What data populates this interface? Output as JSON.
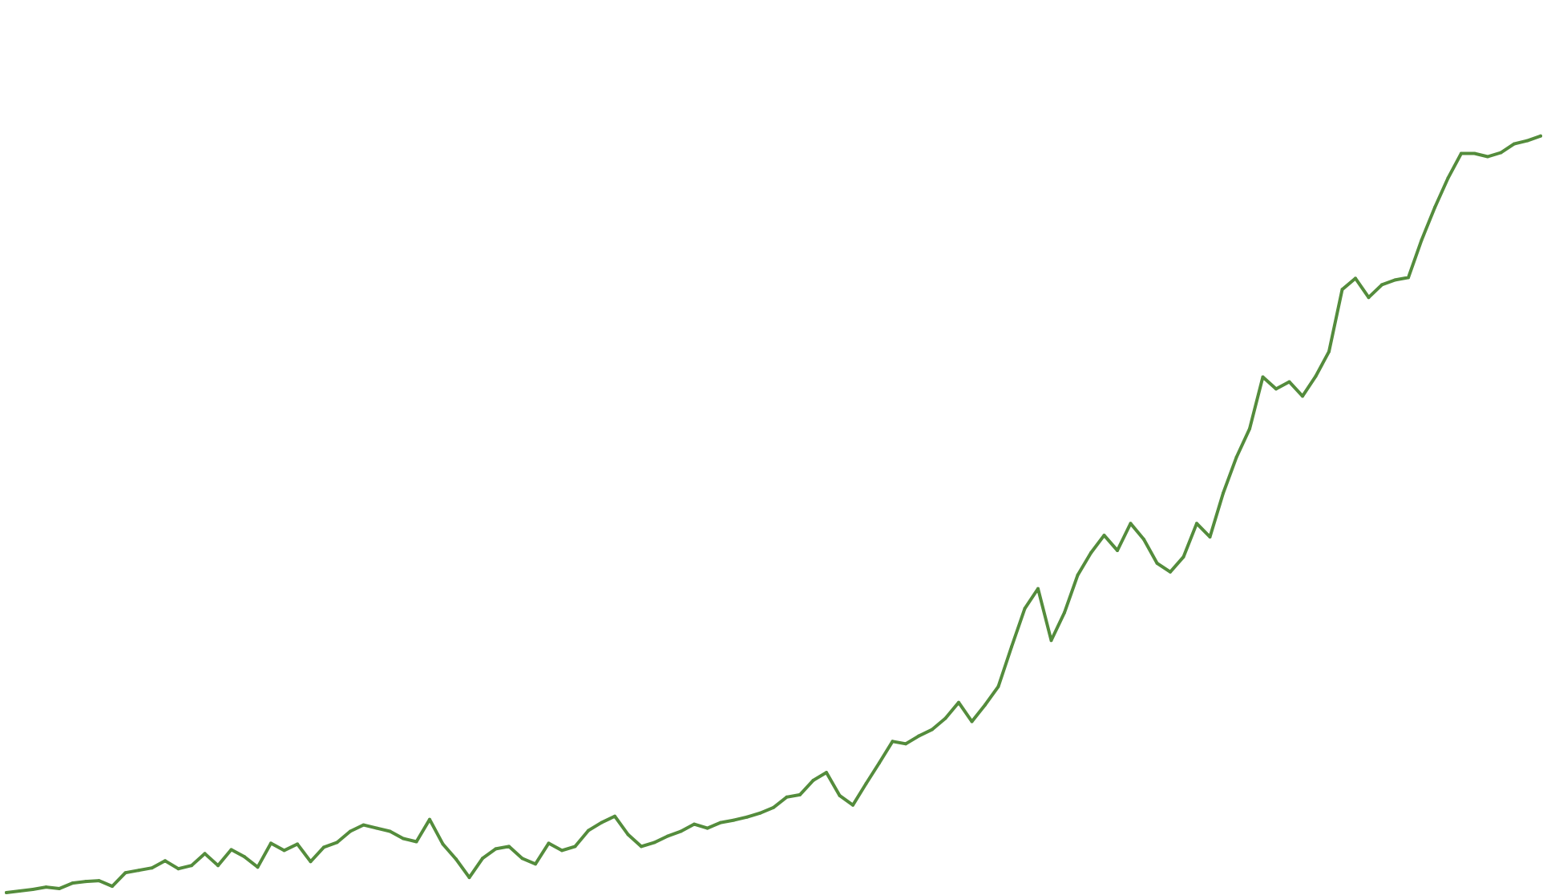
{
  "chart_data": {
    "type": "line",
    "title": "",
    "xlabel": "",
    "ylabel": "",
    "axes_visible": false,
    "grid": false,
    "legend": "none",
    "xlim": [
      0,
      116
    ],
    "ylim": [
      0,
      100
    ],
    "series": [
      {
        "color": "#548c3c",
        "x": [
          0,
          1,
          2,
          3,
          4,
          5,
          6,
          7,
          8,
          9,
          10,
          11,
          12,
          13,
          14,
          15,
          16,
          17,
          18,
          19,
          20,
          21,
          22,
          23,
          24,
          25,
          26,
          27,
          28,
          29,
          30,
          31,
          32,
          33,
          34,
          35,
          36,
          37,
          38,
          39,
          40,
          41,
          42,
          43,
          44,
          45,
          46,
          47,
          48,
          49,
          50,
          51,
          52,
          53,
          54,
          55,
          56,
          57,
          58,
          59,
          60,
          61,
          62,
          63,
          64,
          65,
          66,
          67,
          68,
          69,
          70,
          71,
          72,
          73,
          74,
          75,
          76,
          77,
          78,
          79,
          80,
          81,
          82,
          83,
          84,
          85,
          86,
          87,
          88,
          89,
          90,
          91,
          92,
          93,
          94,
          95,
          96,
          97,
          98,
          99,
          100,
          101,
          102,
          103,
          104,
          105,
          106,
          107,
          108,
          109,
          110,
          111,
          112,
          113,
          114,
          115,
          116
        ],
        "y": [
          0.1,
          0.3,
          0.5,
          0.8,
          0.6,
          1.3,
          1.5,
          1.6,
          0.9,
          2.6,
          2.9,
          3.2,
          4.1,
          3.1,
          3.5,
          5.0,
          3.5,
          5.5,
          4.6,
          3.3,
          6.3,
          5.4,
          6.2,
          4.0,
          5.8,
          6.4,
          7.8,
          8.6,
          8.2,
          7.8,
          6.9,
          6.5,
          9.3,
          6.2,
          4.3,
          2.0,
          4.4,
          5.6,
          5.9,
          4.4,
          3.7,
          6.3,
          5.4,
          5.9,
          7.9,
          8.9,
          9.7,
          7.4,
          5.9,
          6.4,
          7.2,
          7.8,
          8.7,
          8.2,
          8.9,
          9.2,
          9.6,
          10.1,
          10.8,
          12.1,
          12.4,
          14.2,
          15.2,
          12.3,
          11.1,
          13.8,
          16.4,
          19.1,
          18.8,
          19.8,
          20.6,
          22.0,
          24.0,
          21.6,
          23.7,
          26.0,
          31.0,
          35.8,
          38.3,
          31.8,
          35.3,
          40.0,
          42.8,
          45.0,
          43.1,
          46.5,
          44.5,
          41.5,
          40.4,
          42.3,
          46.5,
          44.8,
          50.3,
          54.8,
          58.4,
          64.9,
          63.4,
          64.3,
          62.5,
          65.0,
          68.1,
          75.9,
          77.3,
          74.9,
          76.5,
          77.1,
          77.4,
          82.1,
          86.2,
          89.9,
          93.0,
          93.0,
          92.6,
          93.1,
          94.2,
          94.6,
          95.2
        ]
      }
    ]
  }
}
